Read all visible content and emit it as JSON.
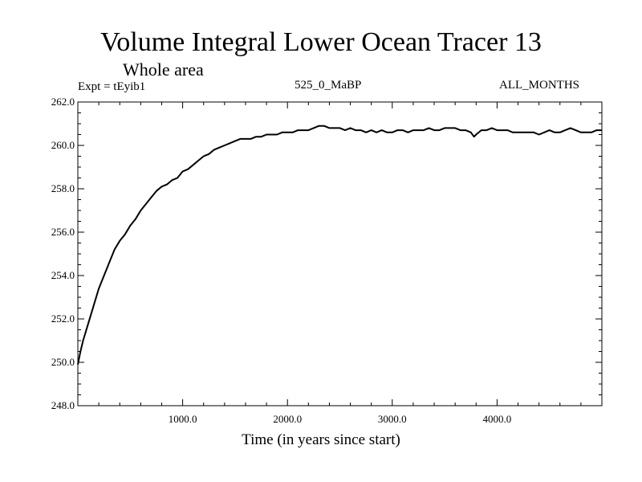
{
  "chart_data": {
    "type": "line",
    "title": "Volume Integral Lower Ocean Tracer 13",
    "subtitle": "Whole area",
    "annotations": {
      "left": "Expt = tEyib1",
      "center": "525_0_MaBP",
      "right": "ALL_MONTHS"
    },
    "xlabel": "Time (in years since start)",
    "ylabel": "",
    "xlim": [
      0,
      5000
    ],
    "ylim": [
      248.0,
      262.0
    ],
    "x_ticks": [
      1000,
      2000,
      3000,
      4000
    ],
    "x_tick_labels": [
      "1000.0",
      "2000.0",
      "3000.0",
      "4000.0"
    ],
    "y_ticks": [
      248,
      250,
      252,
      254,
      256,
      258,
      260,
      262
    ],
    "y_tick_labels": [
      "248.0",
      "250.0",
      "252.0",
      "254.0",
      "256.0",
      "258.0",
      "260.0",
      "262.0"
    ],
    "grid": false,
    "series": [
      {
        "name": "Volume Integral Lower Ocean Tracer 13",
        "color": "#000000",
        "x": [
          0,
          25,
          50,
          100,
          150,
          200,
          250,
          300,
          350,
          400,
          450,
          500,
          550,
          600,
          650,
          700,
          750,
          800,
          850,
          900,
          950,
          1000,
          1050,
          1100,
          1150,
          1200,
          1250,
          1300,
          1350,
          1400,
          1450,
          1500,
          1550,
          1600,
          1650,
          1700,
          1750,
          1800,
          1850,
          1900,
          1950,
          2000,
          2050,
          2100,
          2150,
          2200,
          2250,
          2300,
          2350,
          2400,
          2450,
          2500,
          2550,
          2600,
          2650,
          2700,
          2750,
          2800,
          2850,
          2900,
          2950,
          3000,
          3050,
          3100,
          3150,
          3200,
          3250,
          3300,
          3350,
          3400,
          3450,
          3500,
          3550,
          3600,
          3650,
          3700,
          3750,
          3780,
          3800,
          3850,
          3900,
          3950,
          4000,
          4050,
          4100,
          4150,
          4200,
          4250,
          4300,
          4350,
          4400,
          4450,
          4500,
          4550,
          4600,
          4650,
          4700,
          4750,
          4800,
          4850,
          4900,
          4950,
          5000
        ],
        "values": [
          249.9,
          250.5,
          251.0,
          251.8,
          252.6,
          253.4,
          254.0,
          254.6,
          255.2,
          255.6,
          255.9,
          256.3,
          256.6,
          257.0,
          257.3,
          257.6,
          257.9,
          258.1,
          258.2,
          258.4,
          258.5,
          258.8,
          258.9,
          259.1,
          259.3,
          259.5,
          259.6,
          259.8,
          259.9,
          260.0,
          260.1,
          260.2,
          260.3,
          260.3,
          260.3,
          260.4,
          260.4,
          260.5,
          260.5,
          260.5,
          260.6,
          260.6,
          260.6,
          260.7,
          260.7,
          260.7,
          260.8,
          260.9,
          260.9,
          260.8,
          260.8,
          260.8,
          260.7,
          260.8,
          260.7,
          260.7,
          260.6,
          260.7,
          260.6,
          260.7,
          260.6,
          260.6,
          260.7,
          260.7,
          260.6,
          260.7,
          260.7,
          260.7,
          260.8,
          260.7,
          260.7,
          260.8,
          260.8,
          260.8,
          260.7,
          260.7,
          260.6,
          260.4,
          260.5,
          260.7,
          260.7,
          260.8,
          260.7,
          260.7,
          260.7,
          260.6,
          260.6,
          260.6,
          260.6,
          260.6,
          260.5,
          260.6,
          260.7,
          260.6,
          260.6,
          260.7,
          260.8,
          260.7,
          260.6,
          260.6,
          260.6,
          260.7,
          260.7
        ]
      }
    ]
  }
}
